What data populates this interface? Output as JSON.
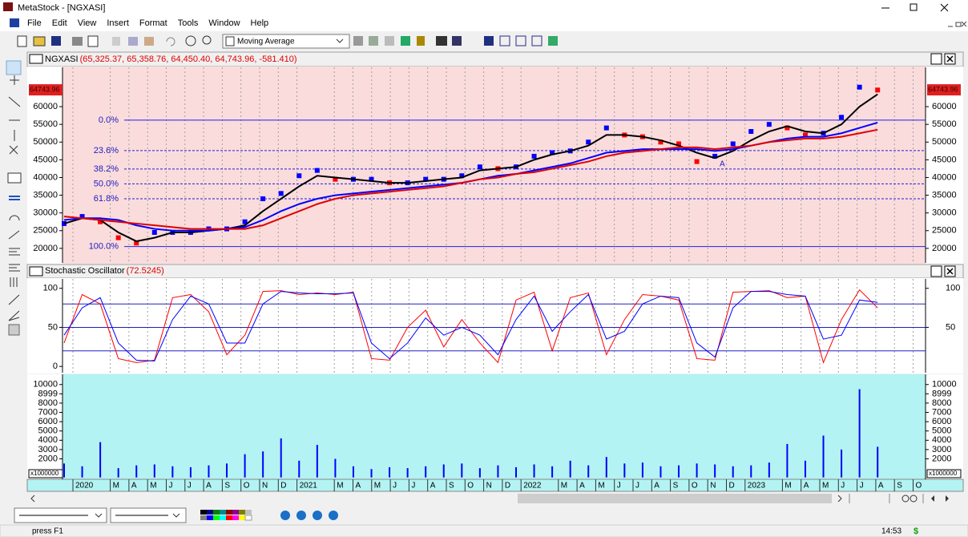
{
  "window": {
    "title": "MetaStock - [NGXASI]"
  },
  "menu": [
    "File",
    "Edit",
    "View",
    "Insert",
    "Format",
    "Tools",
    "Window",
    "Help"
  ],
  "toolbar": {
    "indicator": "Moving Average"
  },
  "chart_data": [
    {
      "type": "line",
      "title": "NGXASI",
      "subtitle": "(65,325.37, 65,358.76, 64,450.40, 64,743.96, -581.410)",
      "ylim": [
        15900,
        71100
      ],
      "yticks": [
        20000,
        25000,
        30000,
        35000,
        40000,
        45000,
        50000,
        55000,
        60000
      ],
      "grid": true,
      "series": [
        {
          "style": "markers",
          "up_color": "#0000ff",
          "down_color": "#ff0000",
          "values": [
            27000,
            29000,
            27500,
            23000,
            21500,
            24500,
            24500,
            24500,
            25500,
            25500,
            27500,
            34000,
            35500,
            40500,
            42000,
            39500,
            39500,
            39500,
            38500,
            38500,
            39500,
            39500,
            40500,
            43000,
            42500,
            43000,
            46000,
            47000,
            47500,
            50000,
            54000,
            52000,
            51500,
            50000,
            49500,
            44500,
            46000,
            49500,
            53000,
            55000,
            54000,
            52000,
            52500,
            57000,
            65500,
            64700
          ]
        },
        {
          "style": "line",
          "color": "#000000",
          "values": [
            27000,
            28500,
            28000,
            24500,
            22000,
            23000,
            24500,
            24500,
            25000,
            25500,
            26500,
            30500,
            34000,
            37500,
            40500,
            40000,
            39500,
            39000,
            38500,
            38500,
            39000,
            39500,
            40000,
            42000,
            42500,
            43000,
            45000,
            46500,
            47500,
            49000,
            52000,
            52000,
            51500,
            50500,
            49000,
            47000,
            45500,
            47500,
            50500,
            53000,
            54500,
            53000,
            52500,
            55000,
            60000,
            63500
          ]
        },
        {
          "style": "line",
          "color": "#0000ff",
          "values": [
            28000,
            28500,
            28500,
            28000,
            26500,
            25500,
            25000,
            25000,
            25000,
            25500,
            26000,
            28000,
            30500,
            32500,
            34000,
            35000,
            35500,
            36000,
            36500,
            37000,
            37500,
            38000,
            38500,
            39500,
            40500,
            41000,
            42000,
            43000,
            44000,
            45500,
            47000,
            47500,
            48000,
            48000,
            48000,
            48000,
            47500,
            48000,
            49000,
            50000,
            51000,
            51500,
            51500,
            52500,
            54000,
            55500
          ]
        },
        {
          "style": "line",
          "color": "#e00000",
          "values": [
            29000,
            28500,
            28000,
            27500,
            27000,
            26500,
            26000,
            25500,
            25500,
            25500,
            25500,
            26500,
            28500,
            30500,
            32500,
            34000,
            35000,
            35500,
            36000,
            36500,
            37000,
            37500,
            38500,
            39500,
            40000,
            41000,
            41500,
            42500,
            43500,
            44500,
            46000,
            47000,
            47500,
            48000,
            48500,
            48500,
            48000,
            48500,
            49000,
            50000,
            50500,
            51000,
            51000,
            51500,
            52500,
            53500
          ]
        }
      ],
      "fib_levels": [
        {
          "label": "0.0%",
          "value": 56200
        },
        {
          "label": "23.6%",
          "value": 47600
        },
        {
          "label": "38.2%",
          "value": 42400
        },
        {
          "label": "50.0%",
          "value": 38200
        },
        {
          "label": "61.8%",
          "value": 34000
        },
        {
          "label": "100.0%",
          "value": 20500
        }
      ],
      "last_price": 64743.96,
      "annotation": "A"
    },
    {
      "type": "line",
      "title": "Stochastic Oscillator",
      "subtitle": "(72.5245)",
      "ylim": [
        -8,
        112
      ],
      "yticks": [
        0,
        50,
        100
      ],
      "y2lim": [
        -8,
        112
      ],
      "y2ticks": [
        50,
        100
      ],
      "levels": [
        20,
        50,
        80
      ],
      "grid": true,
      "series": [
        {
          "style": "line",
          "color": "#ff0000",
          "values": [
            30,
            92,
            80,
            10,
            5,
            8,
            88,
            92,
            70,
            15,
            40,
            96,
            97,
            92,
            94,
            92,
            95,
            10,
            8,
            50,
            72,
            25,
            60,
            30,
            5,
            85,
            95,
            20,
            88,
            94,
            15,
            60,
            92,
            90,
            85,
            10,
            8,
            95,
            96,
            97,
            88,
            90,
            5,
            60,
            98,
            75
          ]
        },
        {
          "style": "line",
          "color": "#0000ff",
          "values": [
            40,
            75,
            88,
            30,
            8,
            7,
            60,
            90,
            80,
            30,
            30,
            80,
            96,
            94,
            93,
            93,
            94,
            30,
            10,
            30,
            62,
            40,
            50,
            40,
            15,
            60,
            90,
            45,
            70,
            92,
            35,
            45,
            80,
            90,
            88,
            30,
            12,
            75,
            96,
            96,
            92,
            90,
            35,
            40,
            85,
            82
          ]
        }
      ]
    },
    {
      "type": "bar",
      "color": "#0000ff",
      "unit": "x1000000",
      "ylim": [
        -200,
        11100
      ],
      "yticks": [
        10000,
        8999,
        8000,
        7000,
        6000,
        5000,
        4000,
        3000,
        2000
      ],
      "values": [
        1500,
        1200,
        3800,
        1000,
        1300,
        1400,
        1200,
        1100,
        1300,
        1500,
        2500,
        2800,
        4200,
        1800,
        3500,
        2000,
        1200,
        900,
        1100,
        1000,
        1200,
        1400,
        1500,
        1000,
        1300,
        1100,
        1400,
        1200,
        1800,
        1300,
        2200,
        1500,
        1600,
        1200,
        1300,
        1500,
        1400,
        1200,
        1300,
        1600,
        3600,
        1800,
        4500,
        3000,
        9500,
        3300
      ]
    }
  ],
  "date_axis": {
    "labels": [
      "2020",
      "M",
      "A",
      "M",
      "J",
      "J",
      "A",
      "S",
      "O",
      "N",
      "D",
      "2021",
      "M",
      "A",
      "M",
      "J",
      "J",
      "A",
      "S",
      "O",
      "N",
      "D",
      "2022",
      "M",
      "A",
      "M",
      "J",
      "J",
      "A",
      "S",
      "O",
      "N",
      "D",
      "2023",
      "M",
      "A",
      "M",
      "J",
      "J",
      "A",
      "S",
      "O"
    ]
  },
  "status": {
    "help": "press F1",
    "time": "14:53",
    "currency": "$"
  }
}
